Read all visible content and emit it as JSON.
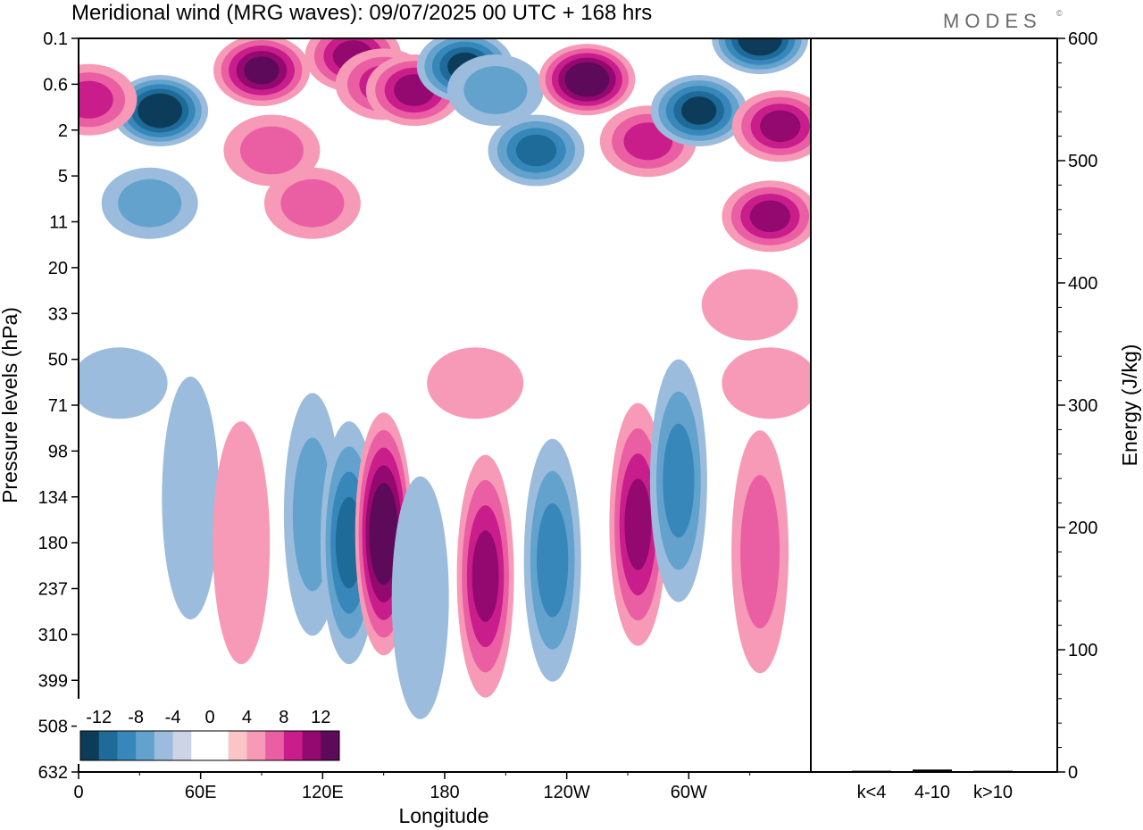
{
  "title": "Meridional wind (MRG waves):  09/07/2025  00 UTC  + 168 hrs",
  "brand": "MODES",
  "brand_mark": "©",
  "colors": {
    "neg": [
      "#0d3c5a",
      "#1e6a98",
      "#3787bb",
      "#62a2cc",
      "#9bbcdc",
      "#cdd4e6"
    ],
    "pos": [
      "#f9c5c6",
      "#f79ab7",
      "#ea5fa3",
      "#c91d8c",
      "#93096f",
      "#5d0a5a"
    ],
    "zero": "#ffffff"
  },
  "chart_data": [
    {
      "type": "heatmap",
      "title": "Meridional wind (MRG waves):  09/07/2025  00 UTC  + 168 hrs",
      "xlabel": "Longitude",
      "ylabel": "Pressure levels (hPa)",
      "x_ticks": [
        "0",
        "60E",
        "120E",
        "180",
        "120W",
        "60W"
      ],
      "y_ticks": [
        "0.1",
        "0.6",
        "2",
        "5",
        "11",
        "20",
        "33",
        "50",
        "71",
        "98",
        "134",
        "180",
        "237",
        "310",
        "399",
        "508",
        "632"
      ],
      "colorbar": {
        "labels": [
          "-12",
          "-8",
          "-4",
          "0",
          "4",
          "8",
          "12"
        ],
        "levels": [
          -14,
          -12,
          -10,
          -8,
          -6,
          -4,
          -2,
          2,
          4,
          6,
          8,
          10,
          12,
          14
        ]
      },
      "blobs": [
        {
          "lon": 40,
          "p": 1.2,
          "v": -14
        },
        {
          "lon": 35,
          "p": 8,
          "v": -6
        },
        {
          "lon": 5,
          "p": 0.9,
          "v": 8
        },
        {
          "lon": 90,
          "p": 0.35,
          "v": 12
        },
        {
          "lon": 95,
          "p": 3,
          "v": 6
        },
        {
          "lon": 115,
          "p": 8,
          "v": 6
        },
        {
          "lon": 135,
          "p": 0.2,
          "v": 10
        },
        {
          "lon": 150,
          "p": 0.6,
          "v": 8
        },
        {
          "lon": 165,
          "p": 0.7,
          "v": 10
        },
        {
          "lon": 190,
          "p": 0.3,
          "v": -12
        },
        {
          "lon": 205,
          "p": 0.7,
          "v": -6
        },
        {
          "lon": 225,
          "p": 3,
          "v": -10
        },
        {
          "lon": 250,
          "p": 0.5,
          "v": 14
        },
        {
          "lon": 280,
          "p": 2.5,
          "v": 8
        },
        {
          "lon": 305,
          "p": 1.2,
          "v": -12
        },
        {
          "lon": 335,
          "p": 0.1,
          "v": -14
        },
        {
          "lon": 345,
          "p": 1.8,
          "v": 10
        },
        {
          "lon": 340,
          "p": 10,
          "v": 10
        },
        {
          "lon": 55,
          "p": 135,
          "v": -4
        },
        {
          "lon": 80,
          "p": 180,
          "v": 4
        },
        {
          "lon": 115,
          "p": 150,
          "v": -6
        },
        {
          "lon": 133,
          "p": 180,
          "v": -10
        },
        {
          "lon": 150,
          "p": 170,
          "v": 14
        },
        {
          "lon": 168,
          "p": 250,
          "v": -4
        },
        {
          "lon": 200,
          "p": 220,
          "v": 10
        },
        {
          "lon": 233,
          "p": 200,
          "v": -8
        },
        {
          "lon": 275,
          "p": 160,
          "v": 10
        },
        {
          "lon": 295,
          "p": 120,
          "v": -8
        },
        {
          "lon": 335,
          "p": 190,
          "v": 6
        },
        {
          "lon": 340,
          "p": 60,
          "v": 4
        },
        {
          "lon": 330,
          "p": 30,
          "v": 4
        },
        {
          "lon": 20,
          "p": 60,
          "v": -4
        },
        {
          "lon": 195,
          "p": 60,
          "v": 4
        }
      ]
    },
    {
      "type": "bar",
      "categories": [
        "k<4",
        "4-10",
        "k>10"
      ],
      "values": [
        1,
        2,
        1
      ],
      "ylabel": "Energy (J/kg)",
      "ylim": [
        0,
        600
      ],
      "y_ticks": [
        "0",
        "100",
        "200",
        "300",
        "400",
        "500",
        "600"
      ]
    }
  ]
}
